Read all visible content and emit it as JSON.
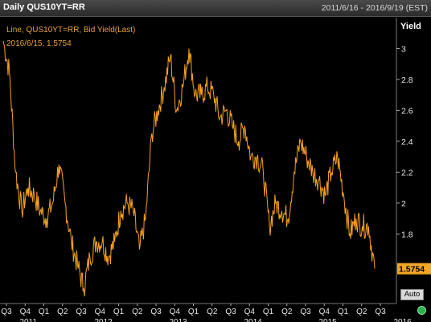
{
  "window": {
    "title": "Daily QUS10YT=RR",
    "date_range": "2011/6/16 - 2016/9/19 (EST)"
  },
  "legend": {
    "series_label": "Line, QUS10YT=RR, Bid Yield(Last)",
    "last_point": "2016/6/15, 1.5754"
  },
  "controls": {
    "auto_label": "Auto"
  },
  "colors": {
    "line": "#f7a21b",
    "label_bg": "#f5a623",
    "background": "#000000",
    "grid": "#3a3a3a"
  },
  "chart_data": {
    "type": "line",
    "title": "",
    "ylabel": "Yield",
    "xlabel": "",
    "ylim": [
      1.35,
      3.2
    ],
    "y_ticks": [
      1.8,
      2,
      2.2,
      2.4,
      2.6,
      2.8,
      3
    ],
    "x_tick_labels": [
      "Q3",
      "Q4",
      "Q1",
      "Q2",
      "Q3",
      "Q4",
      "Q1",
      "Q2",
      "Q3",
      "Q4",
      "Q1",
      "Q2",
      "Q3",
      "Q4",
      "Q1",
      "Q2",
      "Q3",
      "Q4",
      "Q1",
      "Q2",
      "Q3"
    ],
    "year_labels": [
      "2011",
      "2012",
      "2013",
      "2014",
      "2015",
      "2016"
    ],
    "last_value_label": "1.5754",
    "series": [
      {
        "name": "Bid Yield(Last)",
        "x": [
          "2011-06",
          "2011-07",
          "2011-08",
          "2011-09",
          "2011-10",
          "2011-11",
          "2011-12",
          "2012-01",
          "2012-02",
          "2012-03",
          "2012-04",
          "2012-05",
          "2012-06",
          "2012-07",
          "2012-08",
          "2012-09",
          "2012-10",
          "2012-11",
          "2012-12",
          "2013-01",
          "2013-02",
          "2013-03",
          "2013-04",
          "2013-05",
          "2013-06",
          "2013-07",
          "2013-08",
          "2013-09",
          "2013-10",
          "2013-11",
          "2013-12",
          "2014-01",
          "2014-02",
          "2014-03",
          "2014-04",
          "2014-05",
          "2014-06",
          "2014-07",
          "2014-08",
          "2014-09",
          "2014-10",
          "2014-11",
          "2014-12",
          "2015-01",
          "2015-02",
          "2015-03",
          "2015-04",
          "2015-05",
          "2015-06",
          "2015-07",
          "2015-08",
          "2015-09",
          "2015-10",
          "2015-11",
          "2015-12",
          "2016-01",
          "2016-02",
          "2016-03",
          "2016-04",
          "2016-05",
          "2016-06"
        ],
        "y": [
          3.05,
          2.85,
          2.2,
          1.95,
          2.1,
          2.05,
          1.95,
          1.9,
          2.0,
          2.25,
          2.0,
          1.75,
          1.6,
          1.45,
          1.65,
          1.75,
          1.75,
          1.65,
          1.75,
          1.95,
          2.0,
          1.95,
          1.7,
          1.9,
          2.45,
          2.6,
          2.75,
          2.95,
          2.6,
          2.75,
          3.0,
          2.7,
          2.7,
          2.75,
          2.7,
          2.55,
          2.6,
          2.5,
          2.4,
          2.5,
          2.3,
          2.3,
          2.2,
          1.85,
          2.0,
          1.95,
          1.9,
          2.2,
          2.4,
          2.3,
          2.2,
          2.15,
          2.05,
          2.2,
          2.3,
          2.05,
          1.8,
          1.9,
          1.85,
          1.85,
          1.5754
        ]
      }
    ]
  }
}
